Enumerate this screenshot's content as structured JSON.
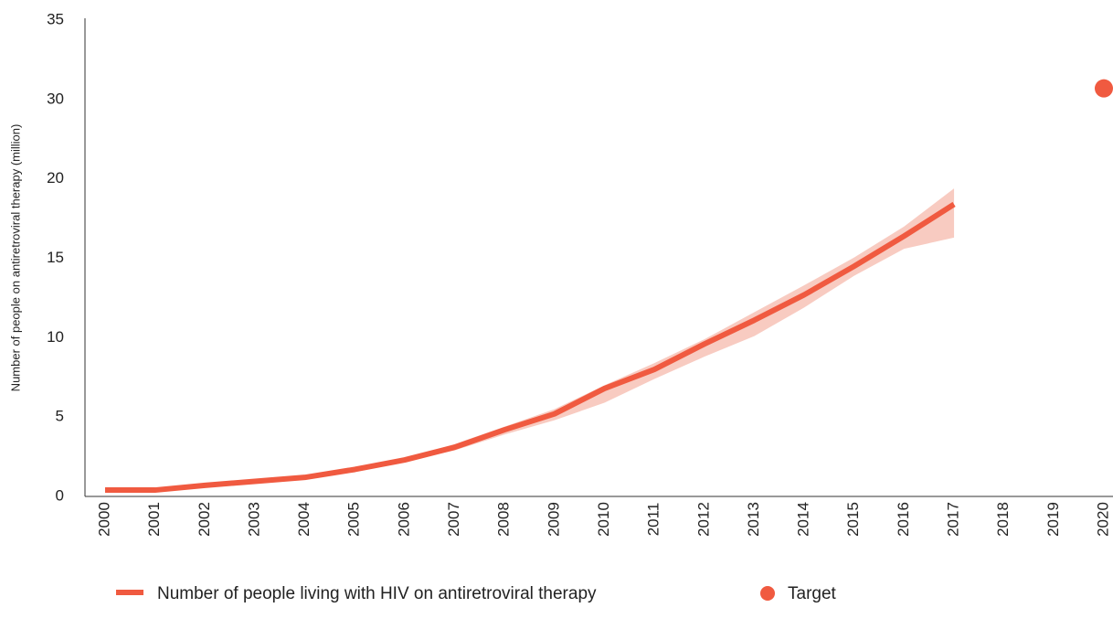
{
  "chart_data": {
    "type": "line",
    "y_axis_label": "Number of people on antiretroviral therapy (million)",
    "categories": [
      "2000",
      "2001",
      "2002",
      "2003",
      "2004",
      "2005",
      "2006",
      "2007",
      "2008",
      "2009",
      "2010",
      "2011",
      "2012",
      "2013",
      "2014",
      "2015",
      "2016",
      "2017",
      "2018",
      "2019",
      "2020"
    ],
    "ylim": [
      0,
      35
    ],
    "yticks": [
      0,
      5,
      10,
      15,
      20,
      30,
      35
    ],
    "series": [
      {
        "name": "Number of people living with HIV on antiretroviral therapy",
        "color": "#f05a40",
        "band_color": "#f8cbc1",
        "values": [
          0.4,
          0.4,
          0.7,
          0.95,
          1.2,
          1.7,
          2.3,
          3.1,
          4.2,
          5.2,
          6.8,
          8.0,
          9.6,
          11.1,
          12.7,
          14.5,
          16.4,
          18.4,
          null,
          null,
          null
        ],
        "lower": [
          0.35,
          0.35,
          0.65,
          0.9,
          1.1,
          1.6,
          2.2,
          2.9,
          3.9,
          4.8,
          5.9,
          7.4,
          8.8,
          10.1,
          11.9,
          13.9,
          15.6,
          16.3,
          null,
          null,
          null
        ],
        "upper": [
          0.45,
          0.45,
          0.75,
          1.0,
          1.3,
          1.8,
          2.4,
          3.3,
          4.4,
          5.5,
          7.0,
          8.4,
          9.9,
          11.6,
          13.3,
          15.05,
          17.0,
          19.4,
          null,
          null,
          null
        ]
      },
      {
        "name": "Target",
        "type": "scatter",
        "color": "#f05a40",
        "values": [
          null,
          null,
          null,
          null,
          null,
          null,
          null,
          null,
          null,
          null,
          null,
          null,
          null,
          null,
          null,
          null,
          null,
          null,
          null,
          null,
          30.7
        ]
      }
    ]
  }
}
